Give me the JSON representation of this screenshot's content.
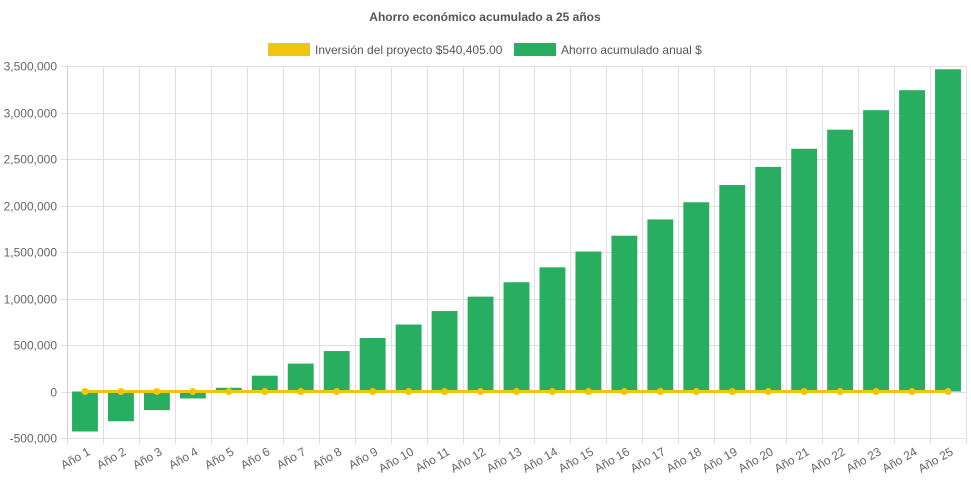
{
  "chart_data": {
    "type": "bar",
    "title": "Ahorro económico acumulado a 25 años",
    "xlabel": "",
    "ylabel": "",
    "ylim": [
      -500000,
      3500000
    ],
    "yticks": [
      "3,500,000",
      "3,000,000",
      "2,500,000",
      "2,000,000",
      "1,500,000",
      "1,000,000",
      "500,000",
      "0",
      "-500,000"
    ],
    "ytick_values": [
      3500000,
      3000000,
      2500000,
      2000000,
      1500000,
      1000000,
      500000,
      0,
      -500000
    ],
    "grid": true,
    "legend_position": "top",
    "categories": [
      "Año 1",
      "Año 2",
      "Año 3",
      "Año 4",
      "Año 5",
      "Año 6",
      "Año 7",
      "Año 8",
      "Año 9",
      "Año 10",
      "Año 11",
      "Año 12",
      "Año 13",
      "Año 14",
      "Año 15",
      "Año 16",
      "Año 17",
      "Año 18",
      "Año 19",
      "Año 20",
      "Año 21",
      "Año 22",
      "Año 23",
      "Año 24",
      "Año 25"
    ],
    "series": [
      {
        "name": "Inversión del proyecto $540,405.00",
        "type": "line",
        "color": "#f1c40f",
        "values": [
          0,
          0,
          0,
          0,
          0,
          0,
          0,
          0,
          0,
          0,
          0,
          0,
          0,
          0,
          0,
          0,
          0,
          0,
          0,
          0,
          0,
          0,
          0,
          0,
          0
        ]
      },
      {
        "name": "Ahorro acumulado anual $",
        "type": "bar",
        "color": "#27ae60",
        "values": [
          -430000,
          -320000,
          -200000,
          -75000,
          40000,
          170000,
          300000,
          435000,
          575000,
          720000,
          865000,
          1020000,
          1175000,
          1335000,
          1505000,
          1675000,
          1850000,
          2035000,
          2220000,
          2415000,
          2610000,
          2815000,
          3025000,
          3240000,
          3465000
        ]
      }
    ]
  }
}
